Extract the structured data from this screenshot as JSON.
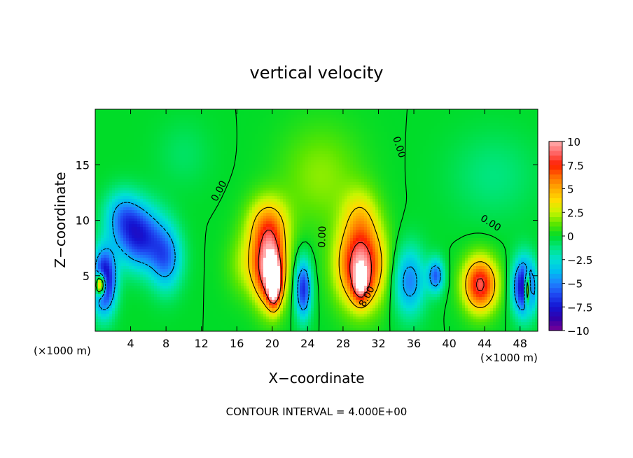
{
  "chart_data": {
    "type": "heatmap",
    "title": "vertical velocity",
    "xlabel": "X−coordinate",
    "ylabel": "Z−coordinate",
    "x_unit_left": "(×1000 m)",
    "x_unit_right": "(×1000 m)",
    "footer": "CONTOUR INTERVAL = 4.000E+00",
    "xlim": [
      0,
      50
    ],
    "ylim": [
      0,
      20
    ],
    "x_ticks": [
      4,
      8,
      12,
      16,
      20,
      24,
      28,
      32,
      36,
      40,
      44,
      48
    ],
    "x_tick_labels": [
      "4",
      "8",
      "12",
      "16",
      "20",
      "24",
      "28",
      "32",
      "36",
      "40",
      "44",
      "48"
    ],
    "y_ticks": [
      5,
      10,
      15
    ],
    "y_tick_labels": [
      "5",
      "10",
      "15"
    ],
    "colorbar": {
      "range": [
        -10,
        10
      ],
      "tick_values": [
        10,
        7.5,
        5,
        2.5,
        0,
        -2.5,
        -5,
        -7.5,
        -10
      ],
      "tick_labels": [
        "10",
        "7.5",
        "5",
        "2.5",
        "0",
        "−2.5",
        "−5",
        "−7.5",
        "−10"
      ]
    },
    "contour_labels": [
      {
        "text": "0.00",
        "x": 14.3,
        "y": 12.5,
        "angle": -62
      },
      {
        "text": "0.00",
        "x": 34.0,
        "y": 16.5,
        "angle": 72
      },
      {
        "text": "0.00",
        "x": 26.0,
        "y": 8.5,
        "angle": -88
      },
      {
        "text": "0.00",
        "x": 44.5,
        "y": 9.5,
        "angle": 32
      },
      {
        "text": "8.00",
        "x": 31.0,
        "y": 3.0,
        "angle": -62
      }
    ],
    "features": [
      {
        "x": 1,
        "z": 4.5,
        "sx": 1.3,
        "sz": 2.8,
        "amp": -9.5
      },
      {
        "x": 5,
        "z": 8.5,
        "sx": 2.6,
        "sz": 2.8,
        "amp": -7
      },
      {
        "x": 8,
        "z": 6.5,
        "sx": 1.8,
        "sz": 2.8,
        "amp": -5
      },
      {
        "x": 3,
        "z": 10.5,
        "sx": 2.0,
        "sz": 2.2,
        "amp": -3.5
      },
      {
        "x": 0.6,
        "z": 4.2,
        "sx": 0.6,
        "sz": 1.0,
        "amp": 12
      },
      {
        "x": 19.8,
        "z": 5.5,
        "sx": 1.7,
        "sz": 3.2,
        "amp": 10
      },
      {
        "x": 20.2,
        "z": 4.2,
        "sx": 0.7,
        "sz": 1.9,
        "amp": 9
      },
      {
        "x": 19.5,
        "z": 9.5,
        "sx": 2.3,
        "sz": 2.6,
        "amp": 5
      },
      {
        "x": 17.5,
        "z": 6.0,
        "sx": 2.3,
        "sz": 2.8,
        "amp": 2.5
      },
      {
        "x": 23.5,
        "z": 3.8,
        "sx": 0.9,
        "sz": 2.6,
        "amp": -7
      },
      {
        "x": 30,
        "z": 6.0,
        "sx": 2.6,
        "sz": 3.6,
        "amp": 9.5
      },
      {
        "x": 30,
        "z": 4.2,
        "sx": 0.9,
        "sz": 1.7,
        "amp": 5
      },
      {
        "x": 30,
        "z": 10.5,
        "sx": 2.0,
        "sz": 2.5,
        "amp": 2.5
      },
      {
        "x": 35.5,
        "z": 4.5,
        "sx": 1.8,
        "sz": 3.0,
        "amp": -5
      },
      {
        "x": 38.5,
        "z": 5.0,
        "sx": 0.9,
        "sz": 1.5,
        "amp": -5.5
      },
      {
        "x": 43.5,
        "z": 4.2,
        "sx": 1.9,
        "sz": 2.4,
        "amp": 8.5
      },
      {
        "x": 48.5,
        "z": 4.0,
        "sx": 1.3,
        "sz": 2.5,
        "amp": -9
      },
      {
        "x": 48.8,
        "z": 3.8,
        "sx": 0.35,
        "sz": 1.4,
        "amp": 10
      },
      {
        "x": 25.5,
        "z": 14,
        "sx": 4.5,
        "sz": 4.5,
        "amp": 1.8
      },
      {
        "x": 45,
        "z": 14,
        "sx": 5,
        "sz": 4,
        "amp": -1.2
      },
      {
        "x": 10,
        "z": 16,
        "sx": 3,
        "sz": 3,
        "amp": -0.8
      }
    ]
  }
}
